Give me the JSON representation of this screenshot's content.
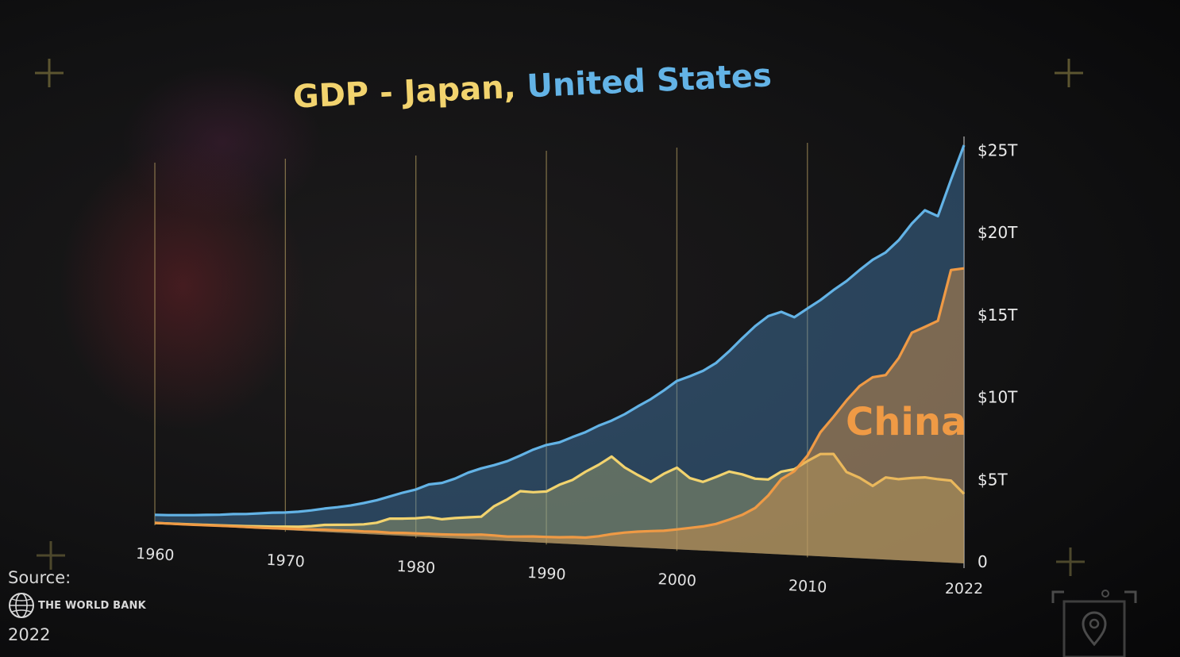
{
  "chart_data": {
    "type": "area",
    "title_parts": [
      {
        "text": "GDP - Japan, ",
        "color": "#f2d36e"
      },
      {
        "text": "United States",
        "color": "#63b3e6"
      }
    ],
    "x_ticks": [
      "1960",
      "1970",
      "1980",
      "1990",
      "2000",
      "2010"
    ],
    "x_end_label": "2022",
    "xlim": [
      1960,
      2022
    ],
    "y_ticks": [
      {
        "value": 0,
        "label": "0"
      },
      {
        "value": 5,
        "label": "$5T"
      },
      {
        "value": 10,
        "label": "$10T"
      },
      {
        "value": 15,
        "label": "$15T"
      },
      {
        "value": 20,
        "label": "$20T"
      },
      {
        "value": 25,
        "label": "$25T"
      }
    ],
    "ylim": [
      0,
      25.5
    ],
    "x": [
      1960,
      1961,
      1962,
      1963,
      1964,
      1965,
      1966,
      1967,
      1968,
      1969,
      1970,
      1971,
      1972,
      1973,
      1974,
      1975,
      1976,
      1977,
      1978,
      1979,
      1980,
      1981,
      1982,
      1983,
      1984,
      1985,
      1986,
      1987,
      1988,
      1989,
      1990,
      1991,
      1992,
      1993,
      1994,
      1995,
      1996,
      1997,
      1998,
      1999,
      2000,
      2001,
      2002,
      2003,
      2004,
      2005,
      2006,
      2007,
      2008,
      2009,
      2010,
      2011,
      2012,
      2013,
      2014,
      2015,
      2016,
      2017,
      2018,
      2019,
      2020,
      2021,
      2022
    ],
    "series": [
      {
        "key": "usa",
        "color": "#63b3e6",
        "fill": "rgba(75,135,190,0.42)",
        "values": [
          0.54,
          0.56,
          0.6,
          0.64,
          0.69,
          0.74,
          0.82,
          0.86,
          0.94,
          1.02,
          1.07,
          1.16,
          1.28,
          1.43,
          1.55,
          1.69,
          1.88,
          2.09,
          2.36,
          2.63,
          2.86,
          3.21,
          3.34,
          3.64,
          4.04,
          4.34,
          4.58,
          4.86,
          5.24,
          5.64,
          5.96,
          6.16,
          6.52,
          6.86,
          7.29,
          7.64,
          8.07,
          8.58,
          9.06,
          9.63,
          10.25,
          10.58,
          10.94,
          11.46,
          12.21,
          13.04,
          13.82,
          14.47,
          14.77,
          14.48,
          15.05,
          15.6,
          16.25,
          16.84,
          17.55,
          18.21,
          18.7,
          19.48,
          20.53,
          21.38,
          21.06,
          23.32,
          25.46
        ]
      },
      {
        "key": "japan",
        "color": "#f2d36e",
        "fill": "rgba(190,185,115,0.36)",
        "values": [
          0.044,
          0.054,
          0.06,
          0.07,
          0.082,
          0.091,
          0.106,
          0.124,
          0.147,
          0.172,
          0.212,
          0.24,
          0.318,
          0.432,
          0.479,
          0.521,
          0.586,
          0.721,
          1.01,
          1.05,
          1.11,
          1.22,
          1.13,
          1.24,
          1.32,
          1.4,
          2.08,
          2.53,
          3.07,
          3.05,
          3.13,
          3.58,
          3.91,
          4.45,
          4.91,
          5.45,
          4.83,
          4.41,
          4.03,
          4.56,
          4.97,
          4.37,
          4.18,
          4.52,
          4.89,
          4.76,
          4.53,
          4.52,
          5.04,
          5.23,
          5.76,
          6.23,
          6.27,
          5.21,
          4.9,
          4.44,
          5.0,
          4.93,
          5.04,
          5.12,
          5.05,
          5.0,
          4.23
        ]
      },
      {
        "key": "china",
        "name": "China",
        "color": "#ef9a45",
        "fill": "rgba(225,150,70,0.45)",
        "values": [
          0.06,
          0.05,
          0.047,
          0.05,
          0.059,
          0.07,
          0.076,
          0.072,
          0.07,
          0.079,
          0.093,
          0.1,
          0.114,
          0.139,
          0.144,
          0.164,
          0.154,
          0.175,
          0.15,
          0.179,
          0.191,
          0.196,
          0.205,
          0.23,
          0.26,
          0.31,
          0.3,
          0.27,
          0.31,
          0.35,
          0.36,
          0.38,
          0.43,
          0.44,
          0.56,
          0.73,
          0.86,
          0.96,
          1.03,
          1.09,
          1.21,
          1.34,
          1.47,
          1.66,
          1.96,
          2.29,
          2.75,
          3.55,
          4.59,
          5.1,
          6.09,
          7.55,
          8.53,
          9.57,
          10.48,
          11.06,
          11.23,
          12.31,
          13.89,
          14.28,
          14.69,
          17.82,
          17.96
        ]
      }
    ]
  },
  "source": {
    "label": "Source:",
    "org": "THE WORLD BANK",
    "year": "2022"
  },
  "icons": [
    "world-bank-globe-icon",
    "map-pin-icon",
    "crosshair-icon"
  ]
}
